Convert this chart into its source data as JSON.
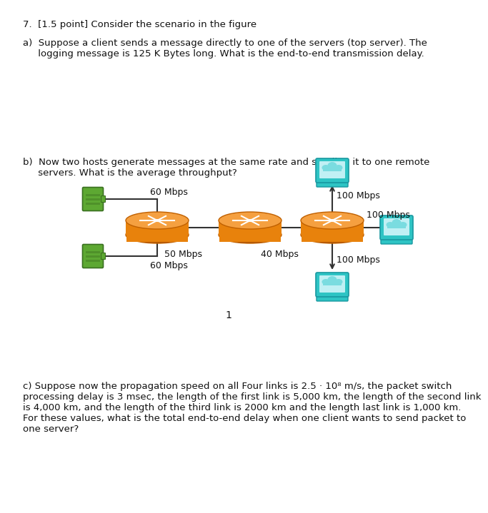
{
  "title_text": "7.  [1.5 point] Consider the scenario in the figure",
  "part_a_line1": "a)  Suppose a client sends a message directly to one of the servers (top server). The",
  "part_a_line2": "     logging message is 125 K Bytes long. What is the end-to-end transmission delay.",
  "part_b_line1": "b)  Now two hosts generate messages at the same rate and sending it to one remote",
  "part_b_line2": "     servers. What is the average throughput?",
  "part_c_line1": "c) Suppose now the propagation speed on all Four links is 2.5 · 10⁸ m/s, the packet switch",
  "part_c_line2": "processing delay is 3 msec, the length of the first link is 5,000 km, the length of the second link",
  "part_c_line3": "is 4,000 km, and the length of the third link is 2000 km and the length last link is 1,000 km.",
  "part_c_line4": "For these values, what is the total end-to-end delay when one client wants to send packet to",
  "part_c_line5": "one server?",
  "router_color": "#E8820C",
  "router_highlight": "#F5A040",
  "router_edge_color": "#C06000",
  "router_shadow": "#B05500",
  "host_green_body": "#5DA832",
  "host_green_edge": "#3a7020",
  "host_green_dark": "#3a7020",
  "host_teal_body": "#2EC4C4",
  "host_teal_edge": "#1898a0",
  "host_teal_screen": "#7adce0",
  "host_teal_inner": "#c0f0f4",
  "line_color": "#333333",
  "bg_color": "#FFFFFF",
  "text_color": "#111111",
  "font_size": 9.5
}
